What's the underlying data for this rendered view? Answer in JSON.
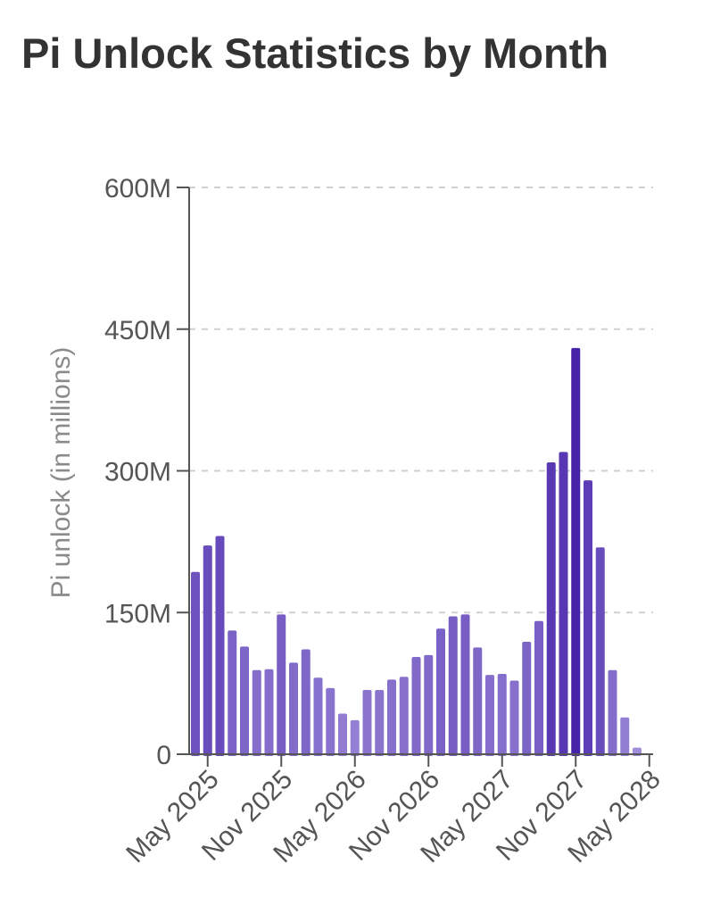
{
  "page": {
    "title": "Pi Unlock Statistics by Month"
  },
  "chart_data": {
    "type": "bar",
    "title": "Pi Unlock Statistics by Month",
    "xlabel": "",
    "ylabel": "Pi unlock (in millions)",
    "ylim": [
      0,
      600
    ],
    "y_unit": "M",
    "y_ticks": [
      {
        "value": 0,
        "label": "0"
      },
      {
        "value": 150,
        "label": "150M"
      },
      {
        "value": 300,
        "label": "300M"
      },
      {
        "value": 450,
        "label": "450M"
      },
      {
        "value": 600,
        "label": "600M"
      }
    ],
    "x_tick_labels": [
      {
        "category": "2025-05",
        "label": "May 2025"
      },
      {
        "category": "2025-11",
        "label": "Nov 2025"
      },
      {
        "category": "2026-05",
        "label": "May 2026"
      },
      {
        "category": "2026-11",
        "label": "Nov 2026"
      },
      {
        "category": "2027-05",
        "label": "May 2027"
      },
      {
        "category": "2027-11",
        "label": "Nov 2027"
      },
      {
        "category": "2028-05",
        "label": "May 2028"
      }
    ],
    "grid": true,
    "legend": "none",
    "color_scale": {
      "low": "#a493dd",
      "high": "#4522a8"
    },
    "categories": [
      "2025-04",
      "2025-05",
      "2025-06",
      "2025-07",
      "2025-08",
      "2025-09",
      "2025-10",
      "2025-11",
      "2025-12",
      "2026-01",
      "2026-02",
      "2026-03",
      "2026-04",
      "2026-05",
      "2026-06",
      "2026-07",
      "2026-08",
      "2026-09",
      "2026-10",
      "2026-11",
      "2026-12",
      "2027-01",
      "2027-02",
      "2027-03",
      "2027-04",
      "2027-05",
      "2027-06",
      "2027-07",
      "2027-08",
      "2027-09",
      "2027-10",
      "2027-11",
      "2027-12",
      "2028-01",
      "2028-02",
      "2028-03",
      "2028-04",
      "2028-05"
    ],
    "values": [
      193,
      221,
      231,
      131,
      114,
      89,
      90,
      148,
      97,
      111,
      81,
      70,
      43,
      36,
      68,
      68,
      79,
      82,
      103,
      105,
      133,
      146,
      148,
      113,
      84,
      85,
      78,
      119,
      141,
      309,
      320,
      430,
      290,
      219,
      89,
      39,
      7,
      0
    ]
  }
}
